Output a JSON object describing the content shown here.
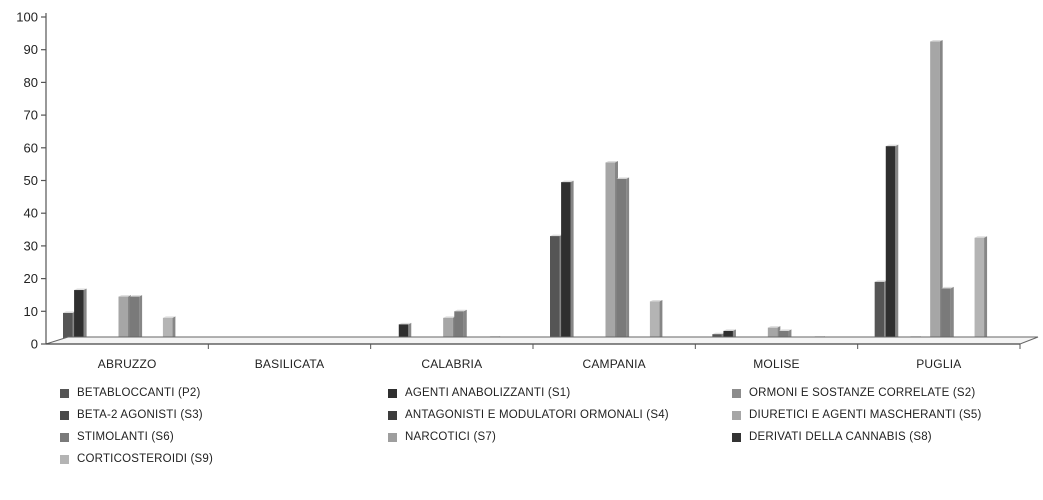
{
  "chart_data": {
    "type": "bar",
    "categories": [
      "ABRUZZO",
      "BASILICATA",
      "CALABRIA",
      "CAMPANIA",
      "MOLISE",
      "PUGLIA"
    ],
    "ylim": [
      0,
      100
    ],
    "yticks": [
      0,
      10,
      20,
      30,
      40,
      50,
      60,
      70,
      80,
      90,
      100
    ],
    "grid": false,
    "legend_position": "bottom",
    "series": [
      {
        "name": "BETABLOCCANTI (P2)",
        "color": "#555555",
        "values": [
          9.5,
          1,
          1,
          33,
          3,
          19
        ]
      },
      {
        "name": "AGENTI ANABOLIZZANTI (S1)",
        "color": "#2f2f2f",
        "values": [
          16.5,
          1,
          6,
          49.5,
          4,
          60.5
        ]
      },
      {
        "name": "ORMONI E SOSTANZE CORRELATE (S2)",
        "color": "#8c8c8c",
        "values": [
          0.5,
          0.5,
          0.5,
          0.5,
          0.5,
          0.5
        ]
      },
      {
        "name": "BETA-2 AGONISTI (S3)",
        "color": "#4a4a4a",
        "values": [
          1.5,
          0.5,
          1.5,
          1,
          1,
          2
        ]
      },
      {
        "name": "ANTAGONISTI E MODULATORI ORMONALI (S4)",
        "color": "#3c3c3c",
        "values": [
          0.5,
          0.5,
          0.5,
          0.5,
          0.5,
          0.5
        ]
      },
      {
        "name": "DIURETICI E AGENTI MASCHERANTI (S5)",
        "color": "#a6a6a6",
        "values": [
          14.5,
          1,
          8,
          55.5,
          5,
          92.5
        ]
      },
      {
        "name": "STIMOLANTI (S6)",
        "color": "#7a7a7a",
        "values": [
          14.5,
          0.5,
          10,
          50.5,
          4,
          17
        ]
      },
      {
        "name": "NARCOTICI (S7)",
        "color": "#9e9e9e",
        "values": [
          0.5,
          0.5,
          0.5,
          0.5,
          0.5,
          0.5
        ]
      },
      {
        "name": "DERIVATI DELLA CANNABIS (S8)",
        "color": "#333333",
        "values": [
          0.5,
          0.5,
          0.5,
          0.5,
          0.5,
          0.5
        ]
      },
      {
        "name": "CORTICOSTEROIDI (S9)",
        "color": "#b4b4b4",
        "values": [
          8,
          1,
          2,
          13,
          2,
          32.5
        ]
      }
    ]
  }
}
